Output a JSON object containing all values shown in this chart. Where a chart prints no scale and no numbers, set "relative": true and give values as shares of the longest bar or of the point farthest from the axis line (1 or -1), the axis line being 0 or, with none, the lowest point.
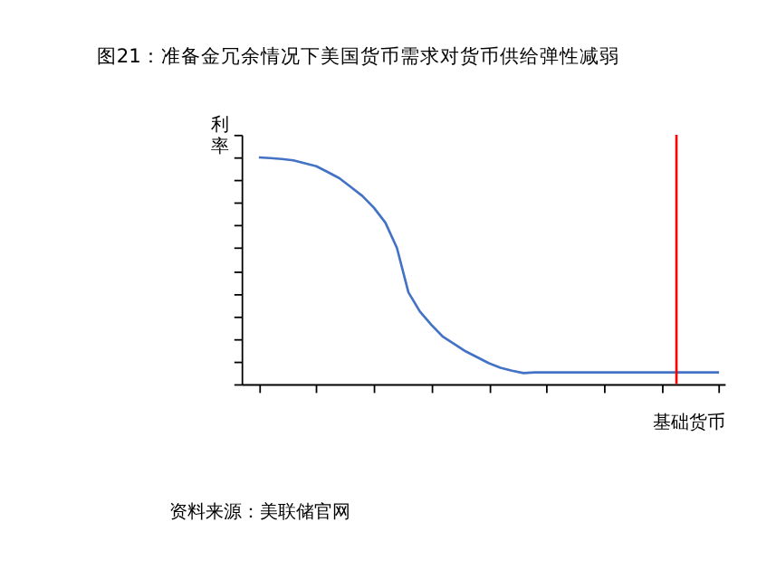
{
  "chart_data": {
    "type": "line",
    "title": "图21：准备金冗余情况下美国货币需求对货币供给弹性减弱",
    "ylabel": "利率",
    "xlabel": "基础货币",
    "relative": true,
    "categories": [
      null,
      null,
      null,
      null,
      null,
      null,
      null,
      null,
      null,
      null,
      null,
      null,
      null,
      null,
      null,
      null,
      null,
      null,
      null,
      null,
      null,
      null,
      null,
      null,
      null,
      null,
      null,
      null,
      null,
      null,
      null,
      null,
      null,
      null,
      null,
      null,
      null,
      null,
      null,
      null,
      null
    ],
    "series": [
      {
        "color": "#4472c4",
        "values": [
          1.0,
          0.997,
          0.993,
          0.987,
          0.974,
          0.961,
          0.935,
          0.908,
          0.869,
          0.83,
          0.778,
          0.712,
          0.601,
          0.405,
          0.32,
          0.261,
          0.209,
          0.176,
          0.144,
          0.118,
          0.092,
          0.072,
          0.059,
          0.049,
          0.052,
          0.052,
          0.052,
          0.052,
          0.052,
          0.052,
          0.052,
          0.052,
          0.052,
          0.052,
          0.052,
          0.052,
          0.052,
          0.052,
          0.052,
          0.052,
          0.052
        ]
      }
    ],
    "annotations": [
      "资料来源：美联储官网"
    ],
    "grid": false
  }
}
